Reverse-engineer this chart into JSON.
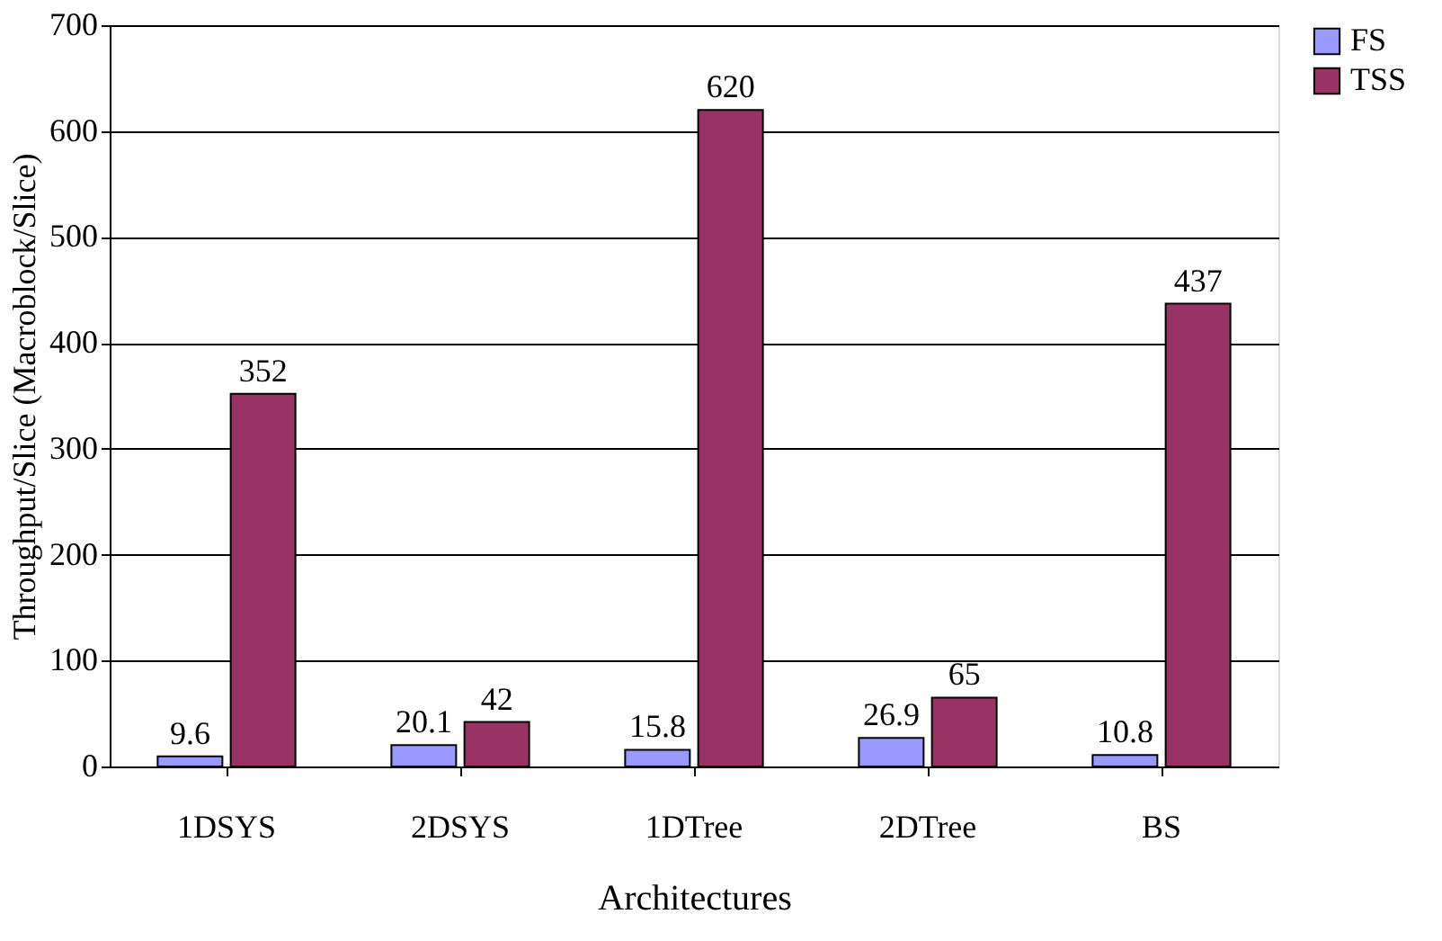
{
  "chart_data": {
    "type": "bar",
    "xlabel": "Architectures",
    "ylabel": "Throughput/Slice (Macroblock/Slice)",
    "categories": [
      "1DSYS",
      "2DSYS",
      "1DTree",
      "2DTree",
      "BS"
    ],
    "series": [
      {
        "name": "FS",
        "color": "#9999ff",
        "values": [
          9.6,
          20.1,
          15.8,
          26.9,
          10.8
        ]
      },
      {
        "name": "TSS",
        "color": "#993366",
        "values": [
          352,
          42,
          620,
          65,
          437
        ]
      }
    ],
    "ylim": [
      0,
      700
    ],
    "yticks": [
      0,
      100,
      200,
      300,
      400,
      500,
      600,
      700
    ],
    "grid": "y",
    "legend": "right",
    "data_labels": true
  }
}
